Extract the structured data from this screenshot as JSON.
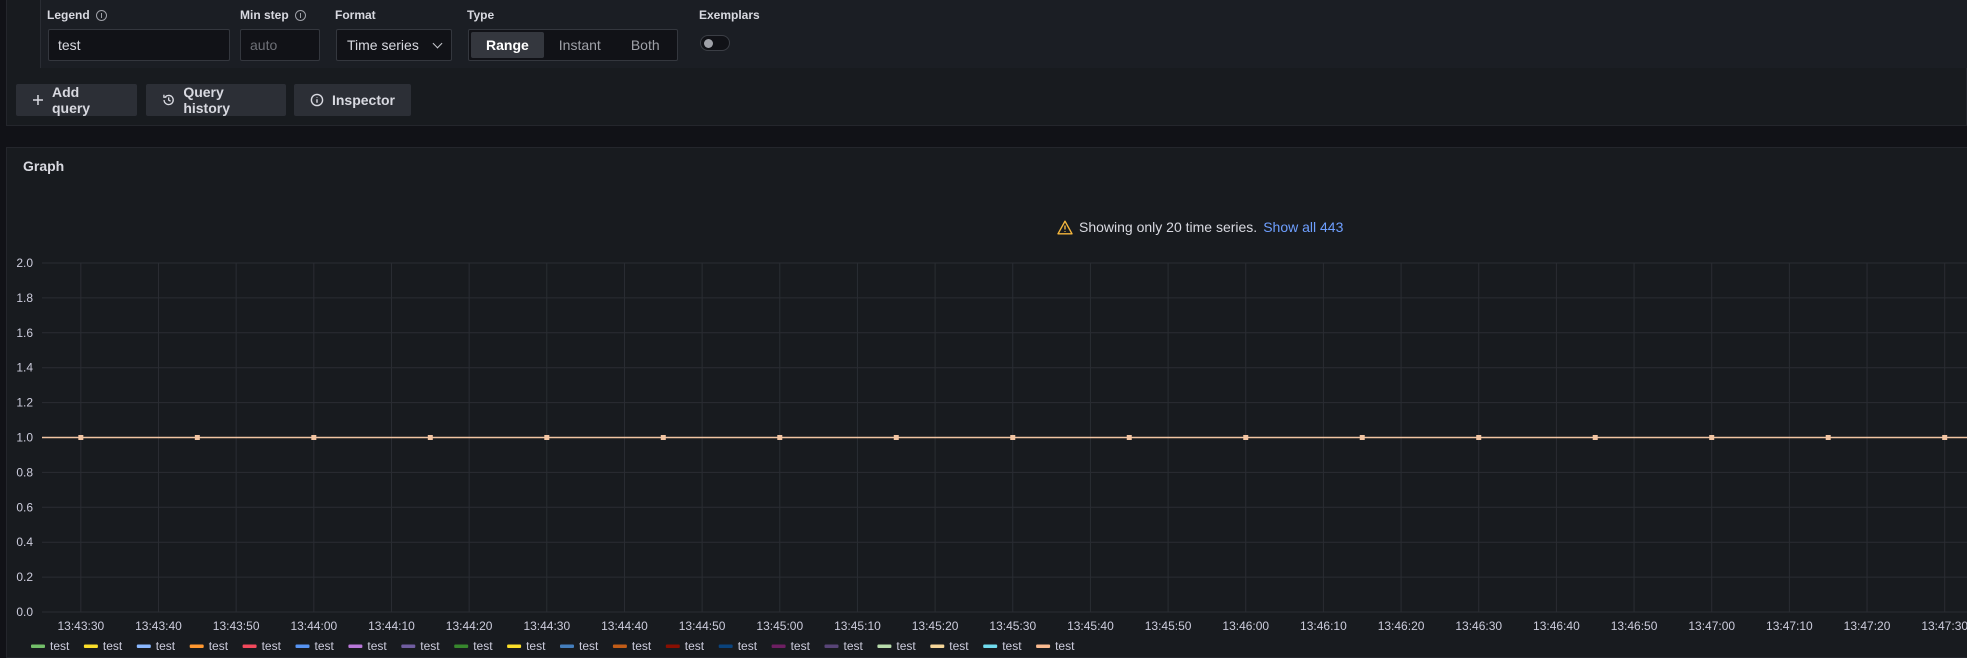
{
  "options": {
    "legend": {
      "label": "Legend",
      "value": "test"
    },
    "min_step": {
      "label": "Min step",
      "placeholder": "auto"
    },
    "format": {
      "label": "Format",
      "value": "Time series"
    },
    "type": {
      "label": "Type",
      "options": [
        "Range",
        "Instant",
        "Both"
      ],
      "selected": "Range"
    },
    "exemplars": {
      "label": "Exemplars",
      "enabled": false
    }
  },
  "actions": {
    "add_query": "Add query",
    "query_history": "Query history",
    "inspector": "Inspector"
  },
  "graph": {
    "title": "Graph",
    "warning_text": "Showing only 20 time series.",
    "show_all_link": "Show all 443"
  },
  "colors": {
    "series_line": "#f2c5a3",
    "warning_icon": "#f5b73d",
    "link": "#6e9fff",
    "legend": [
      "#73bf69",
      "#fade2a",
      "#8ab8ff",
      "#ff9830",
      "#f2495c",
      "#5794f2",
      "#b877d9",
      "#705da0",
      "#37872d",
      "#fade2a",
      "#447ebc",
      "#c15c17",
      "#890f02",
      "#0a437c",
      "#6d1f62",
      "#584477",
      "#b7dbab",
      "#f4d598",
      "#70dbed",
      "#f9ba8f"
    ]
  },
  "chart_data": {
    "type": "line",
    "y_ticks": [
      "0.0",
      "0.2",
      "0.4",
      "0.6",
      "0.8",
      "1.0",
      "1.2",
      "1.4",
      "1.6",
      "1.8",
      "2.0"
    ],
    "ylim": [
      0,
      2
    ],
    "x_ticks": [
      "13:43:30",
      "13:43:40",
      "13:43:50",
      "13:44:00",
      "13:44:10",
      "13:44:20",
      "13:44:30",
      "13:44:40",
      "13:44:50",
      "13:45:00",
      "13:45:10",
      "13:45:20",
      "13:45:30",
      "13:45:40",
      "13:45:50",
      "13:46:00",
      "13:46:10",
      "13:46:20",
      "13:46:30",
      "13:46:40",
      "13:46:50",
      "13:47:00",
      "13:47:10",
      "13:47:20",
      "13:47:30"
    ],
    "xlim": [
      "13:43:25",
      "13:47:33"
    ],
    "point_times": [
      "13:43:30",
      "13:43:45",
      "13:44:00",
      "13:44:15",
      "13:44:30",
      "13:44:45",
      "13:45:00",
      "13:45:15",
      "13:45:30",
      "13:45:45",
      "13:46:00",
      "13:46:15",
      "13:46:30",
      "13:46:45",
      "13:47:00",
      "13:47:15",
      "13:47:30"
    ],
    "value": 1.0,
    "grid": true,
    "legend_position": "bottom",
    "series": [
      {
        "name": "test"
      },
      {
        "name": "test"
      },
      {
        "name": "test"
      },
      {
        "name": "test"
      },
      {
        "name": "test"
      },
      {
        "name": "test"
      },
      {
        "name": "test"
      },
      {
        "name": "test"
      },
      {
        "name": "test"
      },
      {
        "name": "test"
      },
      {
        "name": "test"
      },
      {
        "name": "test"
      },
      {
        "name": "test"
      },
      {
        "name": "test"
      },
      {
        "name": "test"
      },
      {
        "name": "test"
      },
      {
        "name": "test"
      },
      {
        "name": "test"
      },
      {
        "name": "test"
      },
      {
        "name": "test"
      }
    ]
  }
}
